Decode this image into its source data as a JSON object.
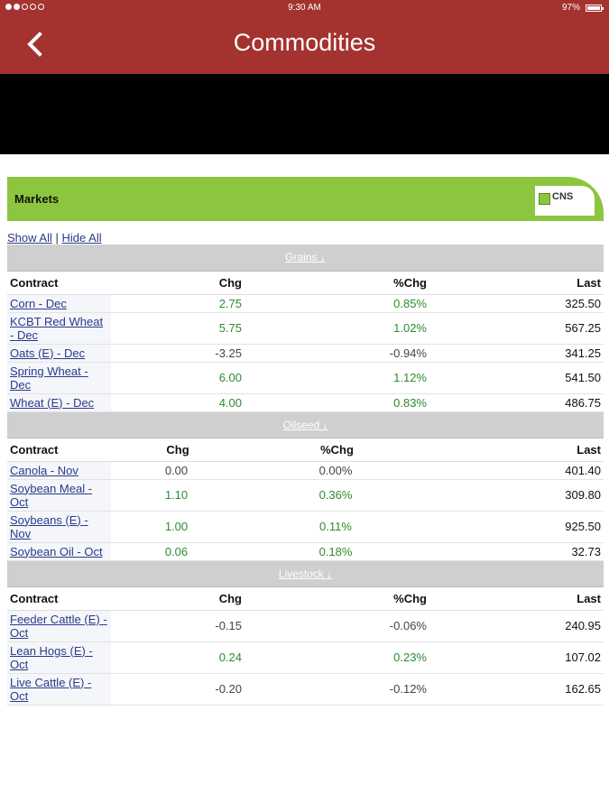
{
  "status": {
    "time": "9:30 AM",
    "battery": "97%"
  },
  "nav": {
    "title": "Commodities"
  },
  "markets": {
    "label": "Markets",
    "logo_text": "CNS",
    "show_all": "Show All",
    "separator": "|",
    "hide_all": "Hide All"
  },
  "sections": [
    {
      "title": "Grains ↓",
      "headers": {
        "contract": "Contract",
        "chg": "Chg",
        "pct": "%Chg",
        "last": "Last"
      },
      "rows": [
        {
          "contract": "Corn - Dec",
          "chg": "2.75",
          "pct": "0.85%",
          "last": "325.50",
          "dir": "pos"
        },
        {
          "contract": "KCBT Red Wheat - Dec",
          "chg": "5.75",
          "pct": "1.02%",
          "last": "567.25",
          "dir": "pos"
        },
        {
          "contract": "Oats (E) - Dec",
          "chg": "-3.25",
          "pct": "-0.94%",
          "last": "341.25",
          "dir": "neg"
        },
        {
          "contract": "Spring Wheat - Dec",
          "chg": "6.00",
          "pct": "1.12%",
          "last": "541.50",
          "dir": "pos"
        },
        {
          "contract": "Wheat (E) - Dec",
          "chg": "4.00",
          "pct": "0.83%",
          "last": "486.75",
          "dir": "pos"
        }
      ]
    },
    {
      "title": "Oilseed ↓",
      "headers": {
        "contract": "Contract",
        "chg": "Chg",
        "pct": "%Chg",
        "last": "Last"
      },
      "rows": [
        {
          "contract": "Canola - Nov",
          "chg": "0.00",
          "pct": "0.00%",
          "last": "401.40",
          "dir": "zero"
        },
        {
          "contract": "Soybean Meal - Oct",
          "chg": "1.10",
          "pct": "0.36%",
          "last": "309.80",
          "dir": "pos"
        },
        {
          "contract": "Soybeans (E) - Nov",
          "chg": "1.00",
          "pct": "0.11%",
          "last": "925.50",
          "dir": "pos"
        },
        {
          "contract": "Soybean Oil - Oct",
          "chg": "0.06",
          "pct": "0.18%",
          "last": "32.73",
          "dir": "pos"
        }
      ]
    },
    {
      "title": "Livestock ↓",
      "headers": {
        "contract": "Contract",
        "chg": "Chg",
        "pct": "%Chg",
        "last": "Last"
      },
      "rows": [
        {
          "contract": "Feeder Cattle (E) - Oct",
          "chg": "-0.15",
          "pct": "-0.06%",
          "last": "240.95",
          "dir": "neg"
        },
        {
          "contract": "Lean Hogs (E) - Oct",
          "chg": "0.24",
          "pct": "0.23%",
          "last": "107.02",
          "dir": "pos"
        },
        {
          "contract": "Live Cattle (E) - Oct",
          "chg": "-0.20",
          "pct": "-0.12%",
          "last": "162.65",
          "dir": "neg"
        }
      ]
    }
  ]
}
